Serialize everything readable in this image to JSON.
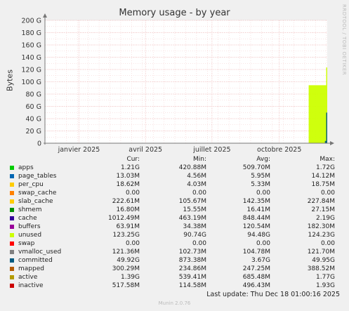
{
  "title": "Memory usage - by year",
  "side_label": "RRDTOOL / TOBI OETIKER",
  "footer": "Munin 2.0.76",
  "last_update": "Last update: Thu Dec 18 01:00:16 2025",
  "legend_headers": [
    "Cur:",
    "Min:",
    "Avg:",
    "Max:"
  ],
  "legend": [
    {
      "name": "apps",
      "color": "#00cc00",
      "cur": "1.21G",
      "min": "420.88M",
      "avg": "509.70M",
      "max": "1.72G"
    },
    {
      "name": "page_tables",
      "color": "#0066b3",
      "cur": "13.03M",
      "min": "4.56M",
      "avg": "5.95M",
      "max": "14.12M"
    },
    {
      "name": "per_cpu",
      "color": "#ffcc00",
      "cur": "18.62M",
      "min": "4.03M",
      "avg": "5.33M",
      "max": "18.75M"
    },
    {
      "name": "swap_cache",
      "color": "#ff8000",
      "cur": "0.00",
      "min": "0.00",
      "avg": "0.00",
      "max": "0.00"
    },
    {
      "name": "slab_cache",
      "color": "#ffcc00",
      "cur": "222.61M",
      "min": "105.67M",
      "avg": "142.35M",
      "max": "227.84M"
    },
    {
      "name": "shmem",
      "color": "#008f00",
      "cur": "16.80M",
      "min": "15.55M",
      "avg": "16.41M",
      "max": "27.15M"
    },
    {
      "name": "cache",
      "color": "#330099",
      "cur": "1012.49M",
      "min": "463.19M",
      "avg": "848.44M",
      "max": "2.19G"
    },
    {
      "name": "buffers",
      "color": "#990099",
      "cur": "63.91M",
      "min": "34.38M",
      "avg": "120.54M",
      "max": "182.30M"
    },
    {
      "name": "unused",
      "color": "#ccff00",
      "cur": "123.25G",
      "min": "90.74G",
      "avg": "94.48G",
      "max": "124.23G"
    },
    {
      "name": "swap",
      "color": "#ff0000",
      "cur": "0.00",
      "min": "0.00",
      "avg": "0.00",
      "max": "0.00"
    },
    {
      "name": "vmalloc_used",
      "color": "#808080",
      "cur": "121.36M",
      "min": "102.73M",
      "avg": "104.78M",
      "max": "121.70M"
    },
    {
      "name": "committed",
      "color": "#005a80",
      "cur": "49.92G",
      "min": "873.38M",
      "avg": "3.67G",
      "max": "49.95G"
    },
    {
      "name": "mapped",
      "color": "#b35a00",
      "cur": "300.29M",
      "min": "234.86M",
      "avg": "247.25M",
      "max": "388.52M"
    },
    {
      "name": "active",
      "color": "#b39b00",
      "cur": "1.39G",
      "min": "539.41M",
      "avg": "685.48M",
      "max": "1.77G"
    },
    {
      "name": "inactive",
      "color": "#cc0000",
      "cur": "517.58M",
      "min": "114.58M",
      "avg": "496.43M",
      "max": "1.93G"
    }
  ],
  "chart_data": {
    "type": "area",
    "title": "Memory usage - by year",
    "ylabel": "Bytes",
    "unit": "G",
    "ylim": [
      0,
      200
    ],
    "yticks": [
      0,
      20,
      40,
      60,
      80,
      100,
      120,
      140,
      160,
      180,
      200
    ],
    "ytick_labels": [
      "0",
      "20 G",
      "40 G",
      "60 G",
      "80 G",
      "100 G",
      "120 G",
      "140 G",
      "160 G",
      "180 G",
      "200 G"
    ],
    "x_range": [
      "2024-12-18",
      "2025-12-18"
    ],
    "xticks": [
      {
        "label": "janvier 2025",
        "date": "2025-01-31"
      },
      {
        "label": "avril 2025",
        "date": "2025-04-27"
      },
      {
        "label": "juillet 2025",
        "date": "2025-07-22"
      },
      {
        "label": "octobre 2025",
        "date": "2025-10-17"
      }
    ],
    "grid": true,
    "series": [
      {
        "name": "unused",
        "color": "#ccff00",
        "start": "2025-11-24",
        "end": "2025-12-18",
        "value": 94.48,
        "final_value": 123.25
      },
      {
        "name": "committed",
        "color": "#005a80",
        "start": "2025-12-15",
        "end": "2025-12-18",
        "value": 3.67,
        "final_value": 49.92
      }
    ]
  }
}
